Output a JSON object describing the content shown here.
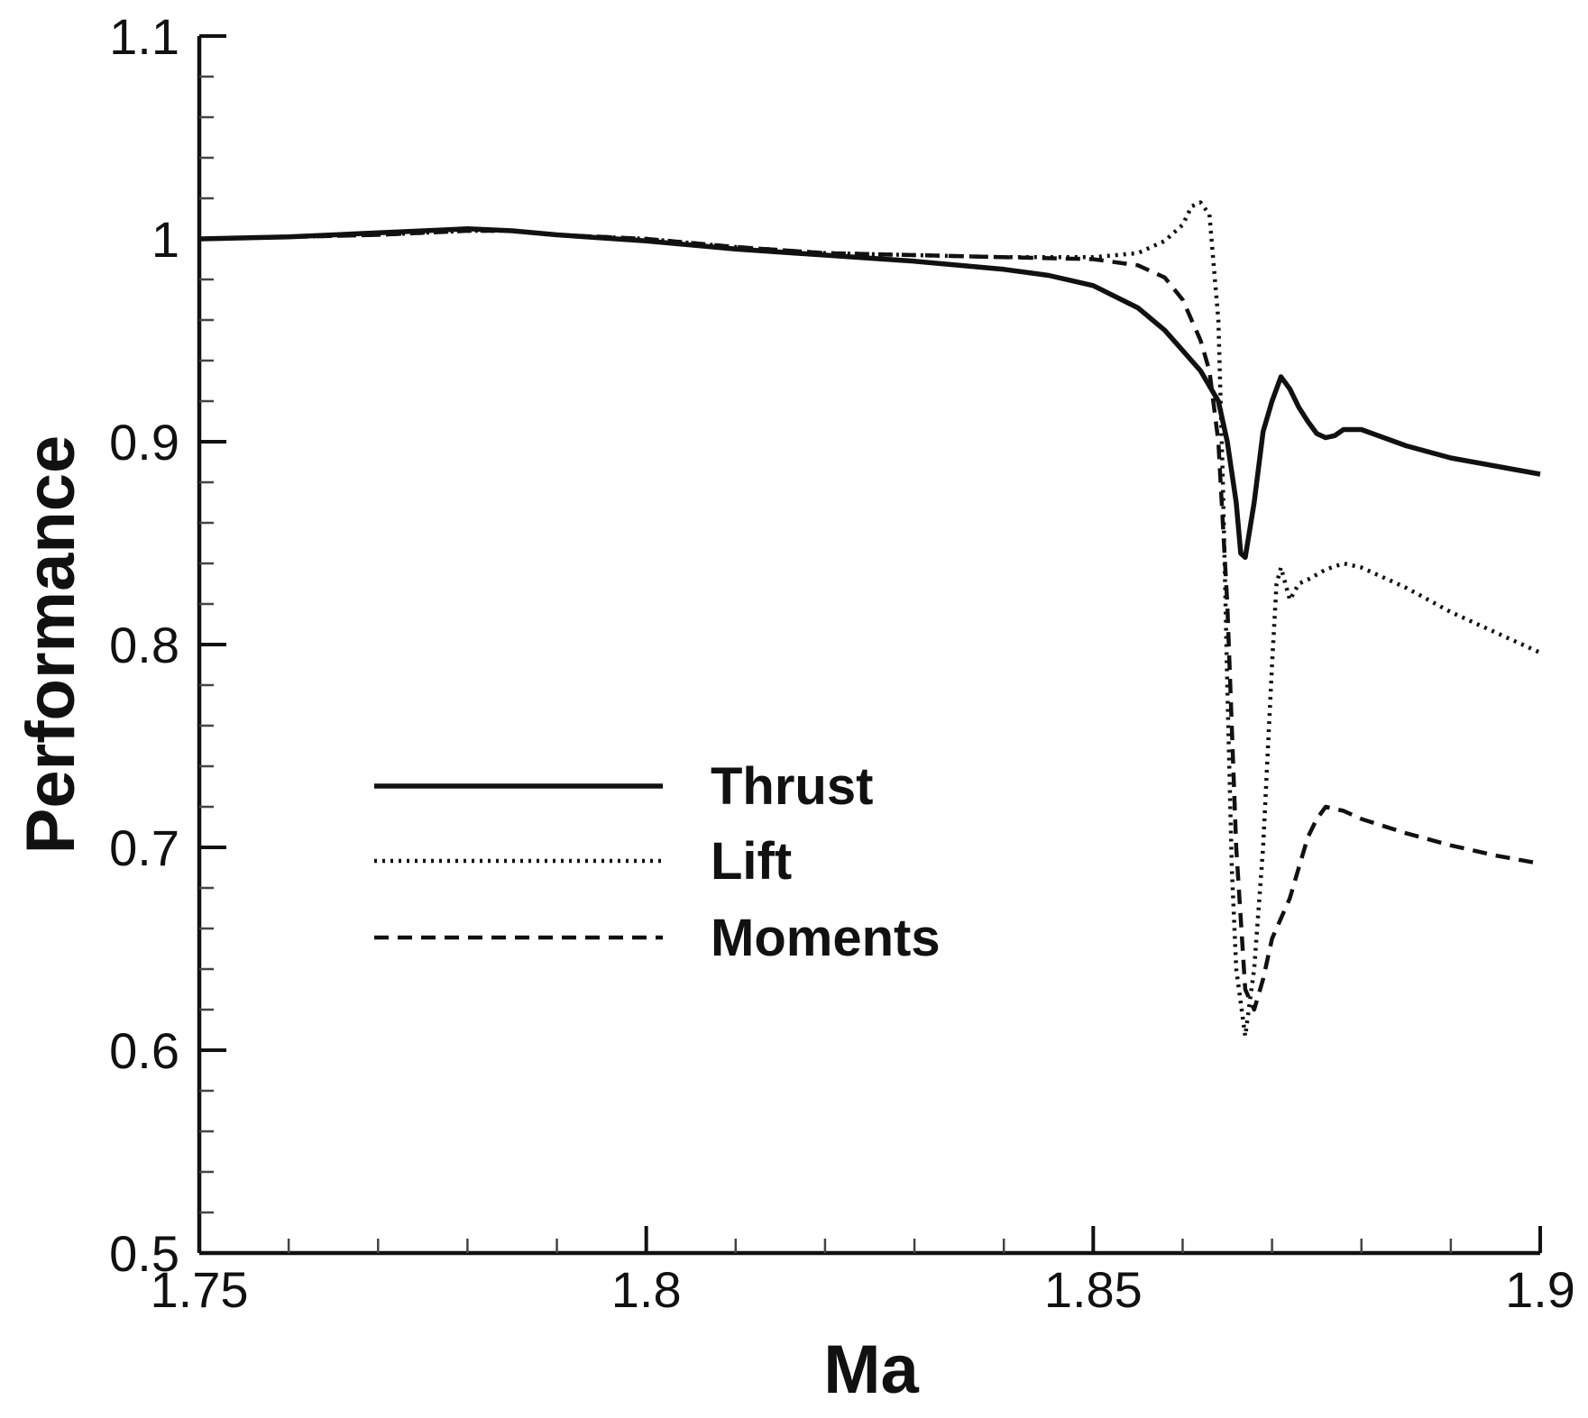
{
  "chart_data": {
    "type": "line",
    "title": "",
    "xlabel": "Ma",
    "ylabel": "Performance",
    "xlim": [
      1.75,
      1.9
    ],
    "ylim": [
      0.5,
      1.1
    ],
    "x_ticks": [
      1.75,
      1.8,
      1.85,
      1.9
    ],
    "x_tick_labels": [
      "1.75",
      "1.8",
      "1.85",
      "1.9"
    ],
    "y_ticks": [
      0.5,
      0.6,
      0.7,
      0.8,
      0.9,
      1.0,
      1.1
    ],
    "y_tick_labels": [
      "0.5",
      "0.6",
      "0.7",
      "0.8",
      "0.9",
      "1",
      "1.1"
    ],
    "grid": false,
    "legend_position": "center-left",
    "series": [
      {
        "name": "Thrust",
        "style": "solid",
        "x": [
          1.75,
          1.76,
          1.77,
          1.78,
          1.785,
          1.79,
          1.8,
          1.81,
          1.82,
          1.83,
          1.84,
          1.845,
          1.85,
          1.855,
          1.858,
          1.86,
          1.862,
          1.864,
          1.865,
          1.866,
          1.8665,
          1.867,
          1.868,
          1.869,
          1.87,
          1.871,
          1.872,
          1.873,
          1.874,
          1.875,
          1.876,
          1.877,
          1.878,
          1.88,
          1.885,
          1.89,
          1.895,
          1.9
        ],
        "y": [
          1.0,
          1.001,
          1.003,
          1.005,
          1.004,
          1.002,
          0.999,
          0.995,
          0.992,
          0.989,
          0.985,
          0.982,
          0.977,
          0.966,
          0.955,
          0.945,
          0.935,
          0.92,
          0.9,
          0.87,
          0.845,
          0.843,
          0.87,
          0.905,
          0.92,
          0.932,
          0.926,
          0.917,
          0.91,
          0.904,
          0.902,
          0.903,
          0.906,
          0.906,
          0.898,
          0.892,
          0.888,
          0.884
        ]
      },
      {
        "name": "Lift",
        "style": "dotted",
        "x": [
          1.75,
          1.76,
          1.77,
          1.78,
          1.785,
          1.79,
          1.8,
          1.81,
          1.82,
          1.83,
          1.84,
          1.85,
          1.855,
          1.858,
          1.86,
          1.861,
          1.862,
          1.863,
          1.864,
          1.8645,
          1.865,
          1.8655,
          1.866,
          1.867,
          1.868,
          1.869,
          1.87,
          1.8705,
          1.871,
          1.872,
          1.873,
          1.874,
          1.876,
          1.878,
          1.88,
          1.885,
          1.89,
          1.895,
          1.9
        ],
        "y": [
          1.0,
          1.001,
          1.002,
          1.004,
          1.004,
          1.002,
          1.0,
          0.996,
          0.993,
          0.992,
          0.991,
          0.991,
          0.993,
          0.999,
          1.007,
          1.016,
          1.018,
          1.012,
          0.96,
          0.88,
          0.78,
          0.69,
          0.64,
          0.607,
          0.64,
          0.7,
          0.79,
          0.83,
          0.838,
          0.822,
          0.83,
          0.832,
          0.837,
          0.84,
          0.838,
          0.828,
          0.816,
          0.806,
          0.796
        ]
      },
      {
        "name": "Moments",
        "style": "dashed",
        "x": [
          1.75,
          1.76,
          1.77,
          1.78,
          1.785,
          1.79,
          1.8,
          1.81,
          1.82,
          1.83,
          1.84,
          1.85,
          1.855,
          1.858,
          1.86,
          1.862,
          1.863,
          1.864,
          1.865,
          1.866,
          1.867,
          1.868,
          1.869,
          1.87,
          1.871,
          1.872,
          1.873,
          1.874,
          1.875,
          1.876,
          1.878,
          1.88,
          1.885,
          1.89,
          1.895,
          1.9
        ],
        "y": [
          1.0,
          1.001,
          1.002,
          1.004,
          1.004,
          1.002,
          1.0,
          0.996,
          0.993,
          0.992,
          0.991,
          0.99,
          0.987,
          0.981,
          0.97,
          0.95,
          0.935,
          0.9,
          0.82,
          0.7,
          0.63,
          0.62,
          0.635,
          0.655,
          0.665,
          0.675,
          0.69,
          0.705,
          0.714,
          0.72,
          0.718,
          0.714,
          0.707,
          0.701,
          0.696,
          0.692
        ]
      }
    ]
  }
}
